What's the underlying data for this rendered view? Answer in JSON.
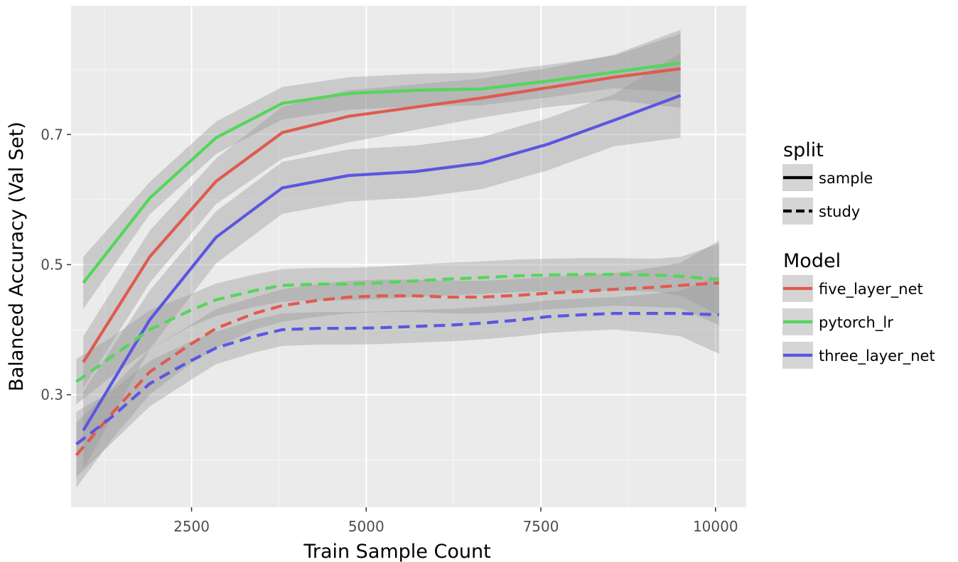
{
  "chart_data": {
    "type": "line",
    "title": "",
    "xlabel": "Train Sample Count",
    "ylabel": "Balanced Accuracy (Val Set)",
    "xlim": [
      775,
      10440
    ],
    "ylim": [
      0.127,
      0.898
    ],
    "x_ticks": [
      2500,
      5000,
      7500,
      10000
    ],
    "x_tick_labels": [
      "2500",
      "5000",
      "7500",
      "10000"
    ],
    "y_ticks": [
      0.3,
      0.5,
      0.7
    ],
    "y_tick_labels": [
      "0.3",
      "0.5",
      "0.7"
    ],
    "grid": true,
    "legend_position": "right",
    "legends": [
      {
        "title": "split",
        "items": [
          {
            "label": "sample",
            "linetype": "solid"
          },
          {
            "label": "study",
            "linetype": "dashed"
          }
        ]
      },
      {
        "title": "Model",
        "items": [
          {
            "label": "five_layer_net",
            "color": "#e05a4f"
          },
          {
            "label": "pytorch_lr",
            "color": "#54d65a"
          },
          {
            "label": "three_layer_net",
            "color": "#5b56e0"
          }
        ]
      }
    ],
    "series": [
      {
        "model": "five_layer_net",
        "split": "sample",
        "color": "#e05a4f",
        "linetype": "solid",
        "x": [
          950,
          1900,
          2850,
          3800,
          4750,
          5700,
          6650,
          7600,
          8550,
          9500
        ],
        "y": [
          0.35,
          0.512,
          0.628,
          0.703,
          0.728,
          0.742,
          0.756,
          0.772,
          0.788,
          0.801
        ],
        "band": [
          0.04,
          0.04,
          0.035,
          0.04,
          0.04,
          0.035,
          0.03,
          0.03,
          0.035,
          0.06
        ]
      },
      {
        "model": "pytorch_lr",
        "split": "sample",
        "color": "#54d65a",
        "linetype": "solid",
        "x": [
          950,
          1900,
          2850,
          3800,
          4750,
          5700,
          6650,
          7600,
          8550,
          9500
        ],
        "y": [
          0.472,
          0.602,
          0.695,
          0.748,
          0.763,
          0.768,
          0.77,
          0.782,
          0.796,
          0.81
        ],
        "band": [
          0.04,
          0.025,
          0.025,
          0.025,
          0.025,
          0.025,
          0.025,
          0.025,
          0.025,
          0.045
        ]
      },
      {
        "model": "three_layer_net",
        "split": "sample",
        "color": "#5b56e0",
        "linetype": "solid",
        "x": [
          950,
          1900,
          2850,
          3800,
          4750,
          5700,
          6650,
          7600,
          8550,
          9500
        ],
        "y": [
          0.245,
          0.415,
          0.542,
          0.618,
          0.637,
          0.643,
          0.656,
          0.685,
          0.722,
          0.76
        ],
        "band": [
          0.06,
          0.045,
          0.04,
          0.04,
          0.04,
          0.04,
          0.04,
          0.04,
          0.04,
          0.065
        ]
      },
      {
        "model": "five_layer_net",
        "split": "study",
        "color": "#e05a4f",
        "linetype": "dashed",
        "x": [
          850,
          1350,
          1900,
          2450,
          2850,
          3400,
          3800,
          4300,
          4750,
          5200,
          5700,
          6200,
          6650,
          7200,
          7600,
          8100,
          8550,
          9100,
          9500,
          10050
        ],
        "y": [
          0.207,
          0.27,
          0.335,
          0.375,
          0.402,
          0.425,
          0.437,
          0.445,
          0.45,
          0.452,
          0.452,
          0.45,
          0.45,
          0.453,
          0.456,
          0.459,
          0.462,
          0.465,
          0.468,
          0.472
        ],
        "band": [
          0.05,
          0.04,
          0.035,
          0.03,
          0.03,
          0.025,
          0.025,
          0.025,
          0.025,
          0.025,
          0.025,
          0.025,
          0.025,
          0.025,
          0.025,
          0.025,
          0.025,
          0.03,
          0.035,
          0.065
        ]
      },
      {
        "model": "pytorch_lr",
        "split": "study",
        "color": "#54d65a",
        "linetype": "dashed",
        "x": [
          850,
          1350,
          1900,
          2450,
          2850,
          3400,
          3800,
          4300,
          4750,
          5200,
          5700,
          6200,
          6650,
          7200,
          7600,
          8100,
          8550,
          9100,
          9500,
          10050
        ],
        "y": [
          0.32,
          0.358,
          0.4,
          0.428,
          0.446,
          0.46,
          0.468,
          0.47,
          0.47,
          0.472,
          0.475,
          0.478,
          0.48,
          0.483,
          0.484,
          0.485,
          0.485,
          0.484,
          0.482,
          0.477
        ],
        "band": [
          0.035,
          0.03,
          0.03,
          0.025,
          0.025,
          0.025,
          0.025,
          0.025,
          0.025,
          0.025,
          0.025,
          0.025,
          0.025,
          0.025,
          0.025,
          0.025,
          0.025,
          0.025,
          0.03,
          0.055
        ]
      },
      {
        "model": "three_layer_net",
        "split": "study",
        "color": "#5b56e0",
        "linetype": "dashed",
        "x": [
          850,
          1350,
          1900,
          2450,
          2850,
          3400,
          3800,
          4300,
          4750,
          5200,
          5700,
          6200,
          6650,
          7200,
          7600,
          8100,
          8550,
          9100,
          9500,
          10050
        ],
        "y": [
          0.224,
          0.265,
          0.317,
          0.35,
          0.372,
          0.39,
          0.4,
          0.402,
          0.402,
          0.403,
          0.405,
          0.407,
          0.41,
          0.415,
          0.42,
          0.423,
          0.425,
          0.425,
          0.425,
          0.423
        ],
        "band": [
          0.05,
          0.04,
          0.035,
          0.03,
          0.025,
          0.025,
          0.025,
          0.025,
          0.025,
          0.025,
          0.025,
          0.025,
          0.025,
          0.025,
          0.025,
          0.025,
          0.025,
          0.03,
          0.035,
          0.06
        ]
      }
    ]
  }
}
